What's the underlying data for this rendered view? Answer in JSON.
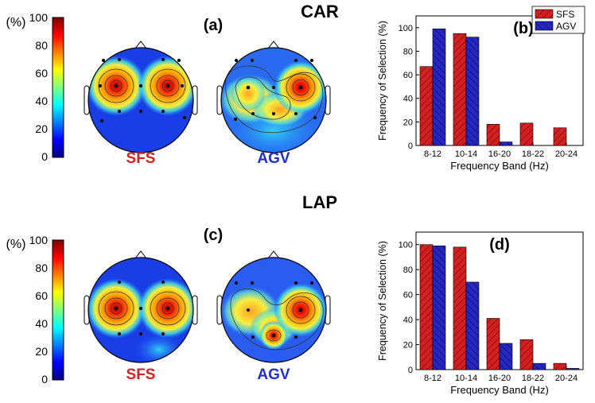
{
  "sections": [
    {
      "method": "CAR",
      "maps_panel": "(a)",
      "colorbar": {
        "unit": "(%)",
        "ticks": [
          "0",
          "20",
          "40",
          "60",
          "80",
          "100"
        ]
      },
      "topomaps": [
        {
          "label": "SFS",
          "label_color": "#d62020"
        },
        {
          "label": "AGV",
          "label_color": "#2030c8"
        }
      ]
    },
    {
      "method": "LAP",
      "maps_panel": "(c)",
      "colorbar": {
        "unit": "(%)",
        "ticks": [
          "0",
          "20",
          "40",
          "60",
          "80",
          "100"
        ]
      },
      "topomaps": [
        {
          "label": "SFS",
          "label_color": "#d62020"
        },
        {
          "label": "AGV",
          "label_color": "#2030c8"
        }
      ]
    }
  ],
  "chart_data": [
    {
      "type": "bar",
      "panel": "(b)",
      "categories": [
        "8-12",
        "10-14",
        "16-20",
        "18-22",
        "20-24"
      ],
      "series": [
        {
          "name": "SFS",
          "color": "#d42020",
          "values": [
            67,
            95,
            18,
            19,
            15
          ]
        },
        {
          "name": "AGV",
          "color": "#2626c0",
          "values": [
            99,
            92,
            3,
            0,
            0
          ]
        }
      ],
      "xlabel": "Frequency Band (Hz)",
      "ylabel": "Frequency of Selection (%)",
      "ylim": [
        0,
        110
      ],
      "yticks": [
        0,
        20,
        40,
        60,
        80,
        100
      ],
      "legend": "top-right"
    },
    {
      "type": "bar",
      "panel": "(d)",
      "categories": [
        "8-12",
        "10-14",
        "16-20",
        "18-22",
        "20-24"
      ],
      "series": [
        {
          "name": "SFS",
          "color": "#d42020",
          "values": [
            100,
            98,
            41,
            24,
            5
          ]
        },
        {
          "name": "AGV",
          "color": "#2626c0",
          "values": [
            99,
            70,
            21,
            5,
            1
          ]
        }
      ],
      "xlabel": "Frequency Band (Hz)",
      "ylabel": "Frequency of Selection (%)",
      "ylim": [
        0,
        110
      ],
      "yticks": [
        0,
        20,
        40,
        60,
        80,
        100
      ],
      "legend": "none"
    }
  ]
}
